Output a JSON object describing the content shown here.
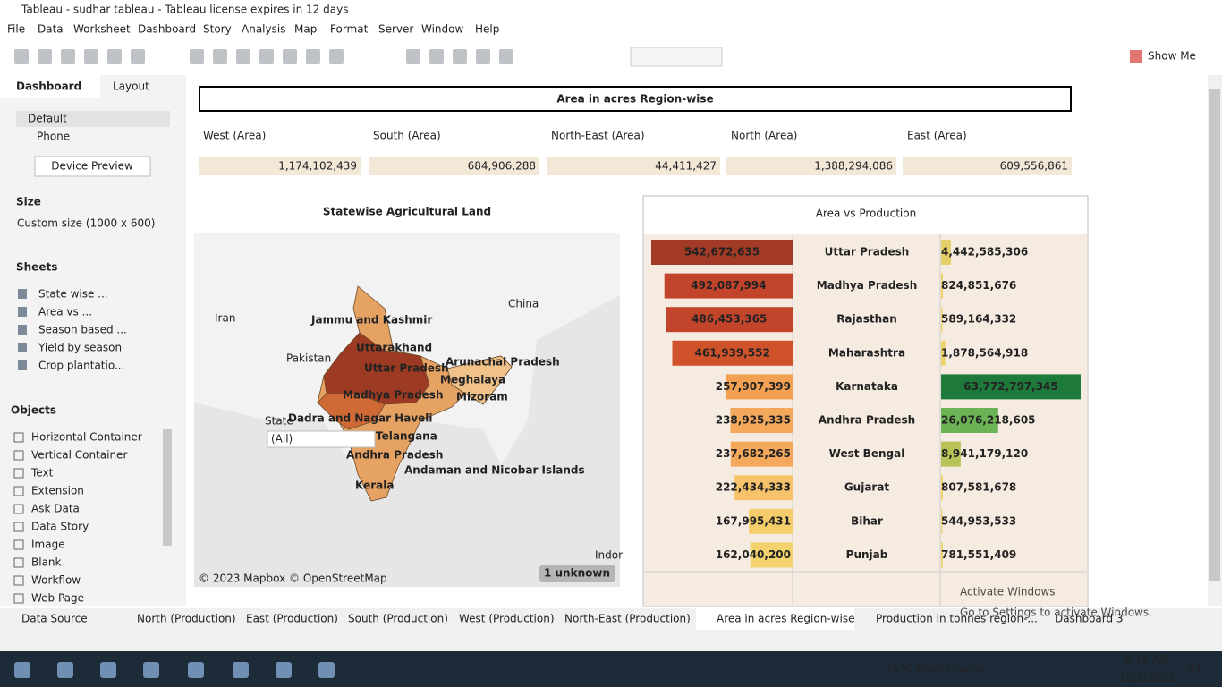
{
  "window": {
    "title": "Tableau - sudhar tableau - Tableau license expires in 12 days"
  },
  "menu": [
    "File",
    "Data",
    "Worksheet",
    "Dashboard",
    "Story",
    "Analysis",
    "Map",
    "Format",
    "Server",
    "Window",
    "Help"
  ],
  "toolbar": {
    "show_me": "Show Me"
  },
  "side_panel": {
    "tabs": [
      "Dashboard",
      "Layout"
    ],
    "devices": [
      "Default",
      "Phone"
    ],
    "device_preview": "Device Preview",
    "size_heading": "Size",
    "size_value": "Custom size (1000 x 600)",
    "sheets_heading": "Sheets",
    "sheets": [
      "State wise ...",
      "Area vs ...",
      "Season based ...",
      "Yield by season",
      "Crop plantatio..."
    ],
    "objects_heading": "Objects",
    "objects": [
      "Horizontal Container",
      "Vertical Container",
      "Text",
      "Extension",
      "Ask Data",
      "Data Story",
      "Image",
      "Blank",
      "Workflow",
      "Web Page"
    ]
  },
  "dashboard": {
    "title": "Area in acres Region-wise",
    "regions": [
      {
        "name": "West (Area)",
        "value": "1,174,102,439"
      },
      {
        "name": "South (Area)",
        "value": "684,906,288"
      },
      {
        "name": "North-East (Area)",
        "value": "44,411,427"
      },
      {
        "name": "North (Area)",
        "value": "1,388,294,086"
      },
      {
        "name": "East (Area)",
        "value": "609,556,861"
      }
    ],
    "map": {
      "title": "Statewise Agricultural Land",
      "state_labels": [
        "Jammu and Kashmir",
        "Uttarakhand",
        "Uttar Pradesh",
        "Arunachal Pradesh",
        "Meghalaya",
        "Madhya Pradesh",
        "Mizoram",
        "Dadra and Nagar Haveli",
        "Telangana",
        "Andhra Pradesh",
        "Andaman and Nicobar Islands",
        "Kerala"
      ],
      "base_labels": [
        "Iran",
        "Pakistan",
        "China",
        "Indor"
      ],
      "filter_label": "State",
      "filter_value": "(All)",
      "attribution": "© 2023 Mapbox © OpenStreetMap",
      "unknown": "1 unknown"
    },
    "area_vs_production": {
      "title": "Area vs Production",
      "categories": [
        "Uttar Pradesh",
        "Madhya Pradesh",
        "Rajasthan",
        "Maharashtra",
        "Karnataka",
        "Andhra Pradesh",
        "West Bengal",
        "Gujarat",
        "Bihar",
        "Punjab"
      ],
      "area": {
        "values": [
          542672635,
          492087994,
          486453365,
          461939552,
          257907399,
          238925335,
          237682265,
          222434333,
          167995431,
          162040200
        ],
        "value_labels": [
          "542,672,635",
          "492,087,994",
          "486,453,365",
          "461,939,552",
          "257,907,399",
          "238,925,335",
          "237,682,265",
          "222,434,333",
          "167,995,431",
          "162,040,200"
        ],
        "colors": [
          "#a33a25",
          "#c2452b",
          "#c2452b",
          "#cf522b",
          "#f2a052",
          "#f4a85c",
          "#f4a85c",
          "#f7c36a",
          "#f6cd6b",
          "#f5d36c"
        ]
      },
      "production": {
        "values": [
          4442585306,
          824851676,
          589164332,
          1878564918,
          63772797345,
          26076218605,
          8941179120,
          807581678,
          544953533,
          781551409
        ],
        "value_labels": [
          "4,442,585,306",
          "824,851,676",
          "589,164,332",
          "1,878,564,918",
          "63,772,797,345",
          "26,076,218,605",
          "8,941,179,120",
          "807,581,678",
          "544,953,533",
          "781,551,409"
        ],
        "colors": [
          "#e6cf68",
          "#f0d36c",
          "#f0d36c",
          "#ecd26a",
          "#1e7a3a",
          "#6cb356",
          "#b8c35a",
          "#f0d36c",
          "#f0d36c",
          "#f0d36c"
        ]
      }
    }
  },
  "sheet_tabs": [
    "Data Source",
    "North (Production)",
    "East (Production)",
    "South (Production)",
    "West (Production)",
    "North-East (Production)",
    "Area in acres Region-wise",
    "Production in tonnes region-...",
    "Dashboard 3"
  ],
  "taskbar": {
    "weather": "28°C Mostly sunny",
    "time": "6:18 AM",
    "date": "10/7/2023",
    "notifications": "21"
  },
  "watermark": [
    "Activate Windows",
    "Go to Settings to activate Windows."
  ]
}
